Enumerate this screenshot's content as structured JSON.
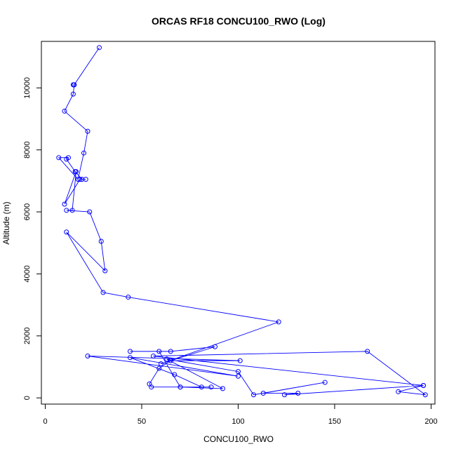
{
  "chart_data": {
    "type": "line",
    "title": "ORCAS RF18 CONCU100_RWO (Log)",
    "xlabel": "CONCU100_RWO",
    "ylabel": "Altitude (m)",
    "xlim": [
      -2,
      202
    ],
    "ylim": [
      -200,
      11500
    ],
    "x_ticks": [
      0,
      50,
      100,
      150,
      200
    ],
    "y_ticks": [
      0,
      2000,
      4000,
      6000,
      8000,
      10000
    ],
    "grid": false,
    "legend": "none",
    "series": [
      {
        "color": "#0000ff",
        "marker": "open-circle",
        "points": [
          [
            28,
            11300
          ],
          [
            15,
            10100
          ],
          [
            14.5,
            10100
          ],
          [
            15,
            10100
          ],
          [
            14.5,
            9800
          ],
          [
            10,
            9250
          ],
          [
            22,
            8600
          ],
          [
            20,
            7900
          ],
          [
            17,
            7050
          ],
          [
            7,
            7750
          ],
          [
            12,
            7750
          ],
          [
            11,
            7700
          ],
          [
            15.5,
            7300
          ],
          [
            19,
            7050
          ],
          [
            21,
            7050
          ],
          [
            18,
            7050
          ],
          [
            10,
            6250
          ],
          [
            16,
            7300
          ],
          [
            14,
            6050
          ],
          [
            11,
            6050
          ],
          [
            23,
            6000
          ],
          [
            29,
            5050
          ],
          [
            31,
            4100
          ],
          [
            11,
            5350
          ],
          [
            30,
            3400
          ],
          [
            43,
            3250
          ],
          [
            121,
            2450
          ],
          [
            60,
            1100
          ],
          [
            88,
            1650
          ],
          [
            65,
            1500
          ],
          [
            44,
            1500
          ],
          [
            59,
            1500
          ],
          [
            70,
            350
          ],
          [
            55,
            350
          ],
          [
            54,
            450
          ],
          [
            59,
            950
          ],
          [
            65,
            1200
          ],
          [
            101,
            1200
          ],
          [
            22,
            1350
          ],
          [
            100,
            700
          ],
          [
            44,
            1300
          ],
          [
            67,
            750
          ],
          [
            81,
            350
          ],
          [
            86,
            350
          ],
          [
            70,
            350
          ],
          [
            92,
            300
          ],
          [
            63,
            1250
          ],
          [
            100,
            850
          ],
          [
            108,
            100
          ],
          [
            145,
            500
          ],
          [
            113,
            150
          ],
          [
            131,
            150
          ],
          [
            124,
            100
          ],
          [
            196,
            400
          ],
          [
            56,
            1350
          ],
          [
            167,
            1500
          ],
          [
            197,
            100
          ],
          [
            183,
            200
          ],
          [
            196,
            400
          ]
        ]
      }
    ]
  }
}
